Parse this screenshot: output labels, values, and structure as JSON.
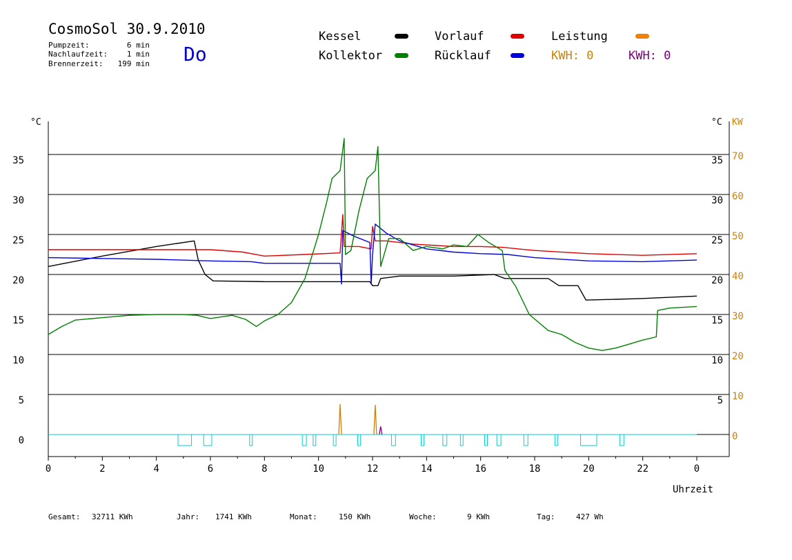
{
  "header": {
    "title": "CosmoSol 30.9.2010",
    "day": "Do",
    "stats": [
      {
        "label": "Pumpzeit:",
        "value": "6 min"
      },
      {
        "label": "Nachlaufzeit:",
        "value": "1 min"
      },
      {
        "label": "Brennerzeit:",
        "value": "199 min"
      }
    ]
  },
  "legend": {
    "items": [
      {
        "label": "Kessel",
        "color": "#000000"
      },
      {
        "label": "Vorlauf",
        "color": "#e00000"
      },
      {
        "label": "Leistung",
        "color": "#f08000"
      },
      {
        "label": "Kollektor",
        "color": "#008000"
      },
      {
        "label": "Rücklauf",
        "color": "#0000e0"
      }
    ],
    "kwh": [
      {
        "text": "KWH: 0",
        "color": "#d08000"
      },
      {
        "text": "KWH: 0",
        "color": "#800080"
      }
    ]
  },
  "footer": {
    "items": [
      {
        "label": "Gesamt:",
        "value": "32711 KWh"
      },
      {
        "label": "Jahr:",
        "value": "1741 KWh"
      },
      {
        "label": "Monat:",
        "value": "150 KWh"
      },
      {
        "label": "Woche:",
        "value": "9 KWh"
      },
      {
        "label": "Tag:",
        "value": "427 Wh"
      }
    ]
  },
  "chart_data": {
    "type": "line",
    "xlabel": "Uhrzeit",
    "ylabel_left": "°C",
    "ylabel_right": "°C",
    "ylabel_right2": "KW",
    "xlim": [
      0,
      24
    ],
    "ylim": [
      -2.5,
      40
    ],
    "x_ticks": [
      "0",
      "2",
      "4",
      "6",
      "8",
      "10",
      "12",
      "14",
      "16",
      "18",
      "20",
      "22",
      "0"
    ],
    "y_ticks_left": [
      "35",
      "30",
      "25",
      "20",
      "15",
      "10",
      "5",
      "0"
    ],
    "y_ticks_right": [
      "35",
      "30",
      "25",
      "20",
      "15",
      "10",
      "5"
    ],
    "y_ticks_kw": [
      "70",
      "60",
      "50",
      "40",
      "30",
      "20",
      "10",
      "0"
    ],
    "colors": {
      "grid": "#000000",
      "kw": "#d08000",
      "pump": "#00d0d0"
    },
    "series": [
      {
        "name": "Kessel",
        "color": "#000000",
        "points": [
          [
            0,
            21
          ],
          [
            2,
            22.3
          ],
          [
            4,
            23.5
          ],
          [
            5.4,
            24.2
          ],
          [
            5.55,
            21.8
          ],
          [
            5.8,
            20
          ],
          [
            6.1,
            19.2
          ],
          [
            8,
            19.1
          ],
          [
            10,
            19.1
          ],
          [
            11,
            19.1
          ],
          [
            11.9,
            19.1
          ],
          [
            12,
            18.6
          ],
          [
            12.2,
            18.6
          ],
          [
            12.3,
            19.5
          ],
          [
            13,
            19.8
          ],
          [
            15,
            19.8
          ],
          [
            16.5,
            20
          ],
          [
            16.9,
            19.5
          ],
          [
            18.5,
            19.5
          ],
          [
            18.9,
            18.6
          ],
          [
            19.6,
            18.6
          ],
          [
            19.9,
            16.8
          ],
          [
            21,
            16.9
          ],
          [
            22,
            17
          ],
          [
            24,
            17.3
          ]
        ]
      },
      {
        "name": "Vorlauf",
        "color": "#e00000",
        "points": [
          [
            0,
            23.1
          ],
          [
            3,
            23.1
          ],
          [
            6,
            23.1
          ],
          [
            7.2,
            22.8
          ],
          [
            8,
            22.3
          ],
          [
            9.5,
            22.5
          ],
          [
            10.8,
            22.7
          ],
          [
            10.9,
            27.5
          ],
          [
            10.95,
            23.5
          ],
          [
            11.5,
            23.5
          ],
          [
            11.95,
            23.2
          ],
          [
            12,
            26
          ],
          [
            12.1,
            24.2
          ],
          [
            12.5,
            24.2
          ],
          [
            13.5,
            23.8
          ],
          [
            15,
            23.5
          ],
          [
            16,
            23.5
          ],
          [
            16.8,
            23.4
          ],
          [
            18,
            23
          ],
          [
            20,
            22.6
          ],
          [
            22,
            22.4
          ],
          [
            24,
            22.6
          ]
        ]
      },
      {
        "name": "Rücklauf",
        "color": "#0000e0",
        "points": [
          [
            0,
            22.1
          ],
          [
            2,
            22
          ],
          [
            4,
            21.9
          ],
          [
            6,
            21.7
          ],
          [
            7.5,
            21.6
          ],
          [
            8,
            21.4
          ],
          [
            9,
            21.4
          ],
          [
            10.8,
            21.4
          ],
          [
            10.85,
            18.8
          ],
          [
            10.9,
            25.5
          ],
          [
            11.3,
            24.8
          ],
          [
            11.9,
            24
          ],
          [
            11.95,
            18.8
          ],
          [
            12,
            22.5
          ],
          [
            12.1,
            26.3
          ],
          [
            12.5,
            25.2
          ],
          [
            13,
            24.2
          ],
          [
            14,
            23.2
          ],
          [
            15,
            22.8
          ],
          [
            16,
            22.6
          ],
          [
            17,
            22.5
          ],
          [
            18,
            22.1
          ],
          [
            20,
            21.7
          ],
          [
            22,
            21.6
          ],
          [
            24,
            21.8
          ]
        ]
      },
      {
        "name": "Kollektor",
        "color": "#008000",
        "points": [
          [
            0,
            12.5
          ],
          [
            0.5,
            13.5
          ],
          [
            1,
            14.3
          ],
          [
            2,
            14.6
          ],
          [
            3,
            14.9
          ],
          [
            4,
            15
          ],
          [
            5,
            15
          ],
          [
            5.5,
            14.9
          ],
          [
            6,
            14.5
          ],
          [
            6.8,
            14.9
          ],
          [
            7.3,
            14.4
          ],
          [
            7.7,
            13.5
          ],
          [
            8,
            14.2
          ],
          [
            8.5,
            15
          ],
          [
            9,
            16.5
          ],
          [
            9.5,
            19.5
          ],
          [
            10,
            25
          ],
          [
            10.3,
            29
          ],
          [
            10.5,
            32
          ],
          [
            10.8,
            33
          ],
          [
            10.95,
            37
          ],
          [
            11,
            22.5
          ],
          [
            11.2,
            23
          ],
          [
            11.5,
            28
          ],
          [
            11.8,
            32
          ],
          [
            12.1,
            33
          ],
          [
            12.2,
            36
          ],
          [
            12.3,
            21
          ],
          [
            12.6,
            24.5
          ],
          [
            13,
            24.5
          ],
          [
            13.5,
            23
          ],
          [
            14,
            23.5
          ],
          [
            14.6,
            23.2
          ],
          [
            15,
            23.7
          ],
          [
            15.5,
            23.5
          ],
          [
            15.9,
            25
          ],
          [
            16.3,
            24
          ],
          [
            16.8,
            23
          ],
          [
            16.9,
            20.5
          ],
          [
            17.3,
            18.5
          ],
          [
            17.8,
            15
          ],
          [
            18.5,
            13
          ],
          [
            19,
            12.5
          ],
          [
            19.5,
            11.5
          ],
          [
            20,
            10.8
          ],
          [
            20.5,
            10.5
          ],
          [
            21,
            10.8
          ],
          [
            21.5,
            11.3
          ],
          [
            22,
            11.8
          ],
          [
            22.5,
            12.2
          ],
          [
            22.55,
            15.5
          ],
          [
            23,
            15.8
          ],
          [
            24,
            16
          ]
        ]
      }
    ],
    "kw_spikes": [
      {
        "x": 10.8,
        "y": 3.8,
        "color": "#d08000"
      },
      {
        "x": 12.1,
        "y": 3.7,
        "color": "#d08000"
      },
      {
        "x": 12.3,
        "y": 1.0,
        "color": "#800080"
      }
    ],
    "pump_pulses": [
      [
        4.8,
        5.3
      ],
      [
        5.75,
        6.05
      ],
      [
        7.45,
        7.55
      ],
      [
        9.4,
        9.55
      ],
      [
        9.8,
        9.9
      ],
      [
        10.55,
        10.65
      ],
      [
        11.45,
        11.55
      ],
      [
        12.7,
        12.85
      ],
      [
        13.8,
        13.9
      ],
      [
        14.6,
        14.75
      ],
      [
        15.25,
        15.35
      ],
      [
        16.15,
        16.25
      ],
      [
        16.6,
        16.75
      ],
      [
        17.6,
        17.75
      ],
      [
        18.75,
        18.85
      ],
      [
        19.7,
        20.3
      ],
      [
        21.15,
        21.3
      ]
    ]
  }
}
